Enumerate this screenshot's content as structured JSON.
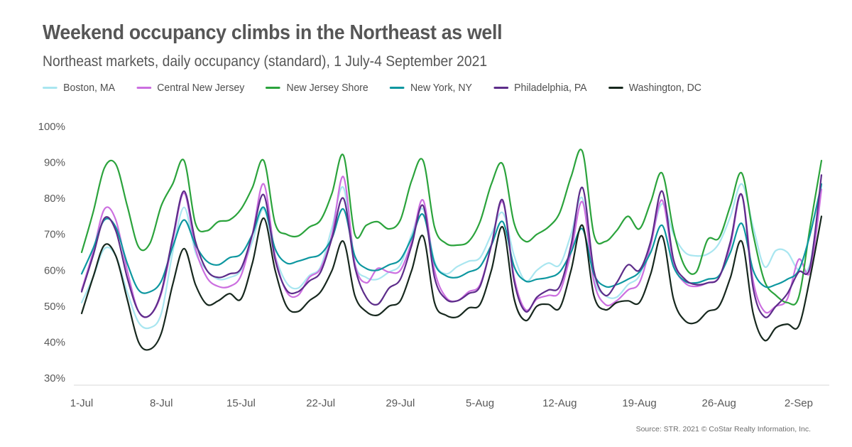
{
  "header": {
    "title": "Weekend occupancy climbs in the Northeast as well",
    "subtitle": "Northeast markets, daily occupancy (standard), 1 July-4 September 2021"
  },
  "footer": {
    "source": "Source: STR. 2021 © CoStar Realty Information, Inc."
  },
  "colors": {
    "title_text": "#565656",
    "tick_text": "#595959",
    "axis_line": "#d9d9d9",
    "background": "#ffffff"
  },
  "chart_data": {
    "type": "line",
    "title": "Weekend occupancy climbs in the Northeast as well",
    "subtitle": "Northeast markets, daily occupancy (standard), 1 July-4 September 2021",
    "xlabel": "",
    "ylabel": "",
    "ylim": [
      30,
      100
    ],
    "grid": false,
    "legend_position": "top",
    "y_ticks": [
      30,
      40,
      50,
      60,
      70,
      80,
      90,
      100
    ],
    "y_tick_suffix": "%",
    "x_ticks": [
      {
        "day": 0,
        "label": "1-Jul"
      },
      {
        "day": 7,
        "label": "8-Jul"
      },
      {
        "day": 14,
        "label": "15-Jul"
      },
      {
        "day": 21,
        "label": "22-Jul"
      },
      {
        "day": 28,
        "label": "29-Jul"
      },
      {
        "day": 35,
        "label": "5-Aug"
      },
      {
        "day": 42,
        "label": "12-Aug"
      },
      {
        "day": 49,
        "label": "19-Aug"
      },
      {
        "day": 56,
        "label": "26-Aug"
      },
      {
        "day": 63,
        "label": "2-Sep"
      }
    ],
    "days_total": 66,
    "series": [
      {
        "id": "boston-ma",
        "name": "Boston, MA",
        "color": "#a9e6f0",
        "values": [
          51,
          58,
          66,
          64,
          54,
          45.5,
          44,
          48,
          65,
          77.5,
          65,
          60,
          57.5,
          58,
          60,
          68,
          77,
          64,
          56.5,
          55,
          58.5,
          61,
          72,
          83,
          62,
          58,
          57.5,
          59.5,
          61.5,
          70,
          77,
          62.5,
          59,
          61,
          62.5,
          63.5,
          70,
          76,
          64,
          57,
          60,
          62,
          61.5,
          70,
          80,
          58,
          53,
          52.5,
          56,
          58.5,
          68,
          78.5,
          70,
          65,
          64,
          64.5,
          67.5,
          75,
          84,
          72,
          61,
          65.5,
          65,
          60,
          62,
          83.5
        ]
      },
      {
        "id": "central-new-jersey",
        "name": "Central New Jersey",
        "color": "#cc6fe0",
        "values": [
          54.5,
          65,
          77,
          74,
          60,
          48.5,
          47.5,
          53.5,
          68,
          81.5,
          66,
          58,
          55.5,
          55.5,
          58.5,
          70,
          84,
          64,
          54,
          53,
          58,
          60.5,
          70,
          86,
          62,
          56.5,
          60.5,
          59.5,
          60,
          68,
          79.5,
          60,
          52.5,
          51.5,
          54,
          56,
          67,
          79,
          58,
          49,
          52,
          53,
          54,
          65,
          79,
          57,
          50.5,
          51.5,
          54.5,
          56.5,
          67,
          79.5,
          62,
          56.5,
          55.5,
          56.5,
          58,
          67,
          81,
          57,
          48.5,
          50,
          52,
          63,
          59.5,
          82.5
        ]
      },
      {
        "id": "new-jersey-shore",
        "name": "New Jersey Shore",
        "color": "#2ba33c",
        "values": [
          65,
          76,
          88.5,
          89.5,
          78,
          66.5,
          67.5,
          78,
          84,
          90.5,
          73,
          71,
          73.5,
          74,
          77,
          83,
          90.5,
          73,
          70,
          69.5,
          72,
          74,
          81.5,
          92,
          70,
          72.5,
          73.5,
          71.5,
          74,
          85,
          90.5,
          72,
          67.5,
          67,
          68,
          73.5,
          84,
          89.5,
          73,
          68,
          70,
          72,
          76,
          86,
          93,
          70,
          68,
          71,
          75,
          71.5,
          79,
          87,
          71,
          61,
          59.5,
          68.5,
          69,
          78,
          87,
          70,
          57,
          53,
          51,
          52.5,
          72,
          90.5
        ]
      },
      {
        "id": "new-york-ny",
        "name": "New York, NY",
        "color": "#0d97a0",
        "values": [
          59,
          66,
          74,
          72,
          62,
          54.5,
          54,
          57,
          66.5,
          74,
          67,
          62.5,
          61.5,
          63.5,
          64.5,
          70,
          77.5,
          66,
          62,
          62.5,
          63.5,
          64.5,
          69,
          77,
          64,
          60.5,
          60,
          61.5,
          63,
          69,
          75.5,
          62,
          58.5,
          58,
          59.5,
          61,
          67,
          73.5,
          61,
          57,
          57.5,
          58,
          59.5,
          65,
          71.5,
          59,
          55.5,
          56,
          57.5,
          59.5,
          65,
          72.5,
          61,
          57,
          56.5,
          57.5,
          58.5,
          65,
          73,
          60,
          55.5,
          56,
          57.5,
          60,
          70,
          84
        ]
      },
      {
        "id": "philadelphia-pa",
        "name": "Philadelphia, PA",
        "color": "#5d2d8a",
        "values": [
          54,
          64,
          74.5,
          71,
          58,
          48.5,
          47.5,
          54,
          69,
          82,
          68,
          60,
          58,
          59,
          60.5,
          70,
          81,
          63,
          54.5,
          54,
          57,
          59.5,
          69,
          80,
          61,
          52.5,
          50.5,
          55,
          57.5,
          67,
          78,
          58,
          52,
          51.5,
          53.5,
          55.5,
          67,
          79.5,
          57,
          48.5,
          52.5,
          54.5,
          55.5,
          67,
          83,
          60,
          53,
          56.5,
          61.5,
          60,
          68,
          82,
          63,
          57.5,
          56,
          56.5,
          58,
          68,
          81,
          55,
          47,
          50,
          53.5,
          59.5,
          61,
          86.5
        ]
      },
      {
        "id": "washington-dc",
        "name": "Washington, DC",
        "color": "#17281e",
        "values": [
          48,
          58,
          67,
          64,
          52,
          40,
          38,
          42.5,
          56,
          66,
          56,
          50.5,
          51.5,
          53.5,
          52,
          62,
          74.5,
          60,
          50,
          48.5,
          51.5,
          54,
          60,
          68,
          53,
          48.5,
          47.5,
          50,
          51.5,
          60,
          69.5,
          51,
          47.5,
          47,
          49.5,
          50.5,
          60,
          72,
          52,
          46,
          50,
          50.5,
          49.5,
          60,
          72.5,
          53,
          49,
          51,
          51.5,
          51,
          59,
          69.5,
          52,
          46,
          45.5,
          48.5,
          50,
          58,
          68,
          48,
          40.5,
          44,
          45,
          44.5,
          58,
          75
        ]
      }
    ]
  }
}
